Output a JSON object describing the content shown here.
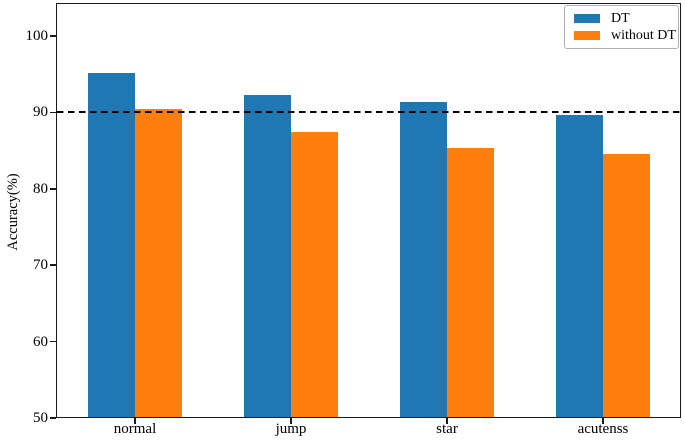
{
  "chart_data": {
    "type": "bar",
    "title": "",
    "categories": [
      "normal",
      "jump",
      "star",
      "acutenss"
    ],
    "series": [
      {
        "name": "DT",
        "color": "#1f77b4",
        "values": [
          95.2,
          92.3,
          91.4,
          89.7
        ]
      },
      {
        "name": "without DT",
        "color": "#ff7f0e",
        "values": [
          90.4,
          87.4,
          85.4,
          84.5
        ]
      }
    ],
    "xlabel": "",
    "ylabel": "Accuracy(%)",
    "ylim": [
      50,
      104.2
    ],
    "yticks": [
      50,
      60,
      70,
      80,
      90,
      100
    ],
    "reference_line": {
      "y": 90,
      "style": "dashed",
      "color": "#000000"
    },
    "legend": {
      "position": "upper right"
    },
    "grid": false,
    "axis_color": "#1a1a1a",
    "background_color": "#ffffff"
  }
}
